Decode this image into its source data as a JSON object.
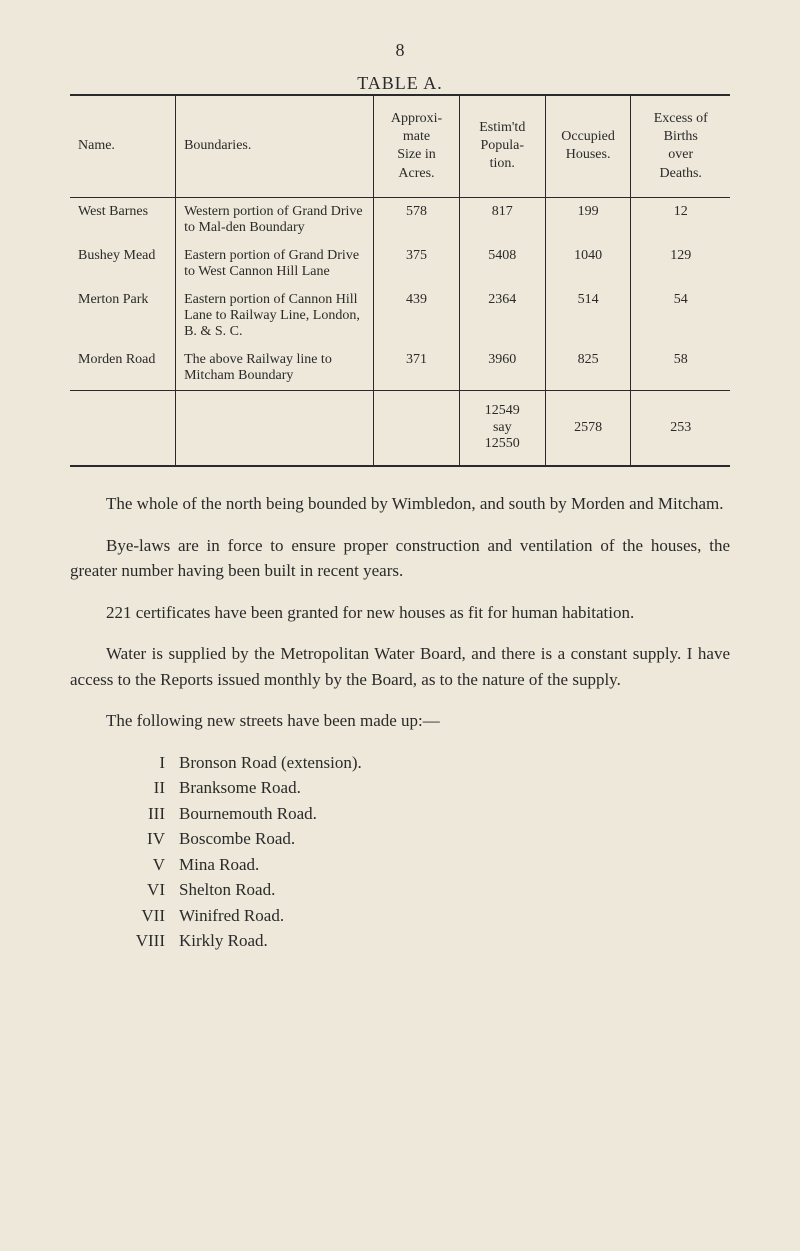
{
  "page_number": "8",
  "table": {
    "title": "TABLE A.",
    "columns": [
      "Name.",
      "Boundaries.",
      "Approxi-\nmate\nSize in\nAcres.",
      "Estim'td\nPopula-\ntion.",
      "Occupied\nHouses.",
      "Excess of\nBirths\nover\nDeaths."
    ],
    "rows": [
      {
        "name": "West Barnes",
        "boundaries": "Western portion of Grand Drive to Mal-den Boundary",
        "size": "578",
        "pop": "817",
        "houses": "199",
        "excess": "12"
      },
      {
        "name": "Bushey Mead",
        "boundaries": "Eastern portion of Grand Drive to West Cannon Hill Lane",
        "size": "375",
        "pop": "5408",
        "houses": "1040",
        "excess": "129"
      },
      {
        "name": "Merton Park",
        "boundaries": "Eastern portion of Cannon Hill Lane to Railway Line, London, B. & S. C.",
        "size": "439",
        "pop": "2364",
        "houses": "514",
        "excess": "54"
      },
      {
        "name": "Morden Road",
        "boundaries": "The above Railway line to Mitcham Boundary",
        "size": "371",
        "pop": "3960",
        "houses": "825",
        "excess": "58"
      }
    ],
    "totals": {
      "pop": "12549",
      "say_label": "say",
      "pop_say": "12550",
      "houses": "2578",
      "excess": "253"
    }
  },
  "paragraphs": {
    "p1": "The whole of the north being bounded by Wimbledon, and south by Morden and Mitcham.",
    "p2": "Bye-laws are in force to ensure proper construction and ventilation of the houses, the greater number having been built in recent years.",
    "p3": "221 certificates have been granted for new houses as fit for human habitation.",
    "p4": "Water is supplied by the Metropolitan Water Board, and there is a constant supply. I have access to the Reports issued monthly by the Board, as to the nature of the supply.",
    "p5": "The following new streets have been made up:—"
  },
  "streets": [
    {
      "num": "I",
      "name": "Bronson Road (extension)."
    },
    {
      "num": "II",
      "name": "Branksome Road."
    },
    {
      "num": "III",
      "name": "Bournemouth Road."
    },
    {
      "num": "IV",
      "name": "Boscombe Road."
    },
    {
      "num": "V",
      "name": "Mina Road."
    },
    {
      "num": "VI",
      "name": "Shelton Road."
    },
    {
      "num": "VII",
      "name": "Winifred Road."
    },
    {
      "num": "VIII",
      "name": "Kirkly Road."
    }
  ],
  "colors": {
    "background": "#ede8d9",
    "text": "#2a2a2a",
    "rule": "#2a2a2a"
  }
}
